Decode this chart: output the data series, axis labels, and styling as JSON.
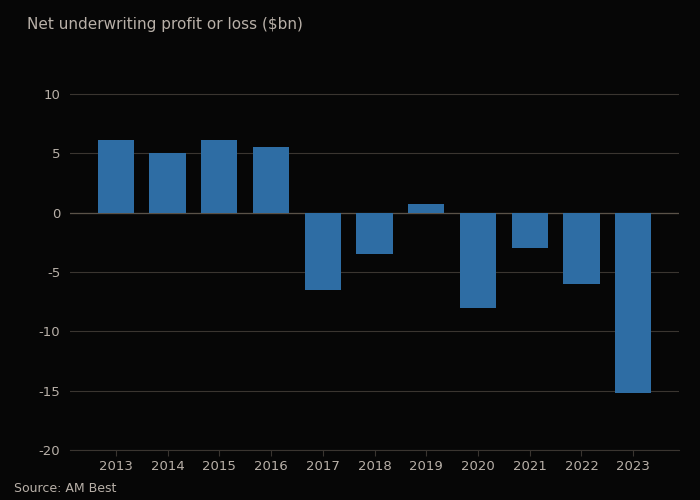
{
  "years": [
    2013,
    2014,
    2015,
    2016,
    2017,
    2018,
    2019,
    2020,
    2021,
    2022,
    2023
  ],
  "values": [
    6.1,
    5.0,
    6.1,
    5.5,
    -6.5,
    -3.5,
    0.7,
    -8.0,
    -3.0,
    -6.0,
    -15.2
  ],
  "bar_color": "#2e6da4",
  "ylabel": "Net underwriting profit or loss ($bn)",
  "source": "Source: AM Best",
  "ylim": [
    -20,
    12
  ],
  "yticks": [
    -20,
    -15,
    -10,
    -5,
    0,
    5,
    10
  ],
  "background_color": "#060606",
  "plot_bg_color": "#060606",
  "grid_color": "#3a3530",
  "text_color": "#b8b0a8",
  "title_fontsize": 11,
  "tick_fontsize": 9.5,
  "source_fontsize": 9
}
